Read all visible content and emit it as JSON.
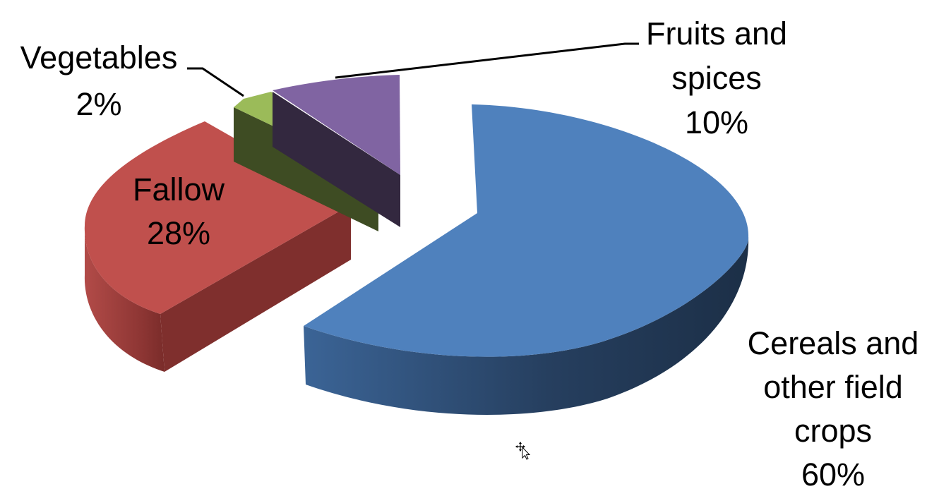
{
  "chart_data": {
    "type": "pie",
    "title": "",
    "three_d": true,
    "exploded": true,
    "legend": "none",
    "slices": [
      {
        "name": "Cereals and other field crops",
        "label_lines": [
          "Cereals and",
          "other field",
          "crops"
        ],
        "pct_label": "60%",
        "value": 60,
        "color": "#4F81BD",
        "side_color": "#2C4D75"
      },
      {
        "name": "Fallow",
        "label_lines": [
          "Fallow"
        ],
        "pct_label": "28%",
        "value": 28,
        "color": "#C0504D",
        "side_color": "#7F2F2D"
      },
      {
        "name": "Vegetables",
        "label_lines": [
          "Vegetables"
        ],
        "pct_label": "2%",
        "value": 2,
        "color": "#9BBB59",
        "side_color": "#3E4C23"
      },
      {
        "name": "Fruits and spices",
        "label_lines": [
          "Fruits and",
          "spices"
        ],
        "pct_label": "10%",
        "value": 10,
        "color": "#8064A2",
        "side_color": "#33283F"
      }
    ]
  }
}
